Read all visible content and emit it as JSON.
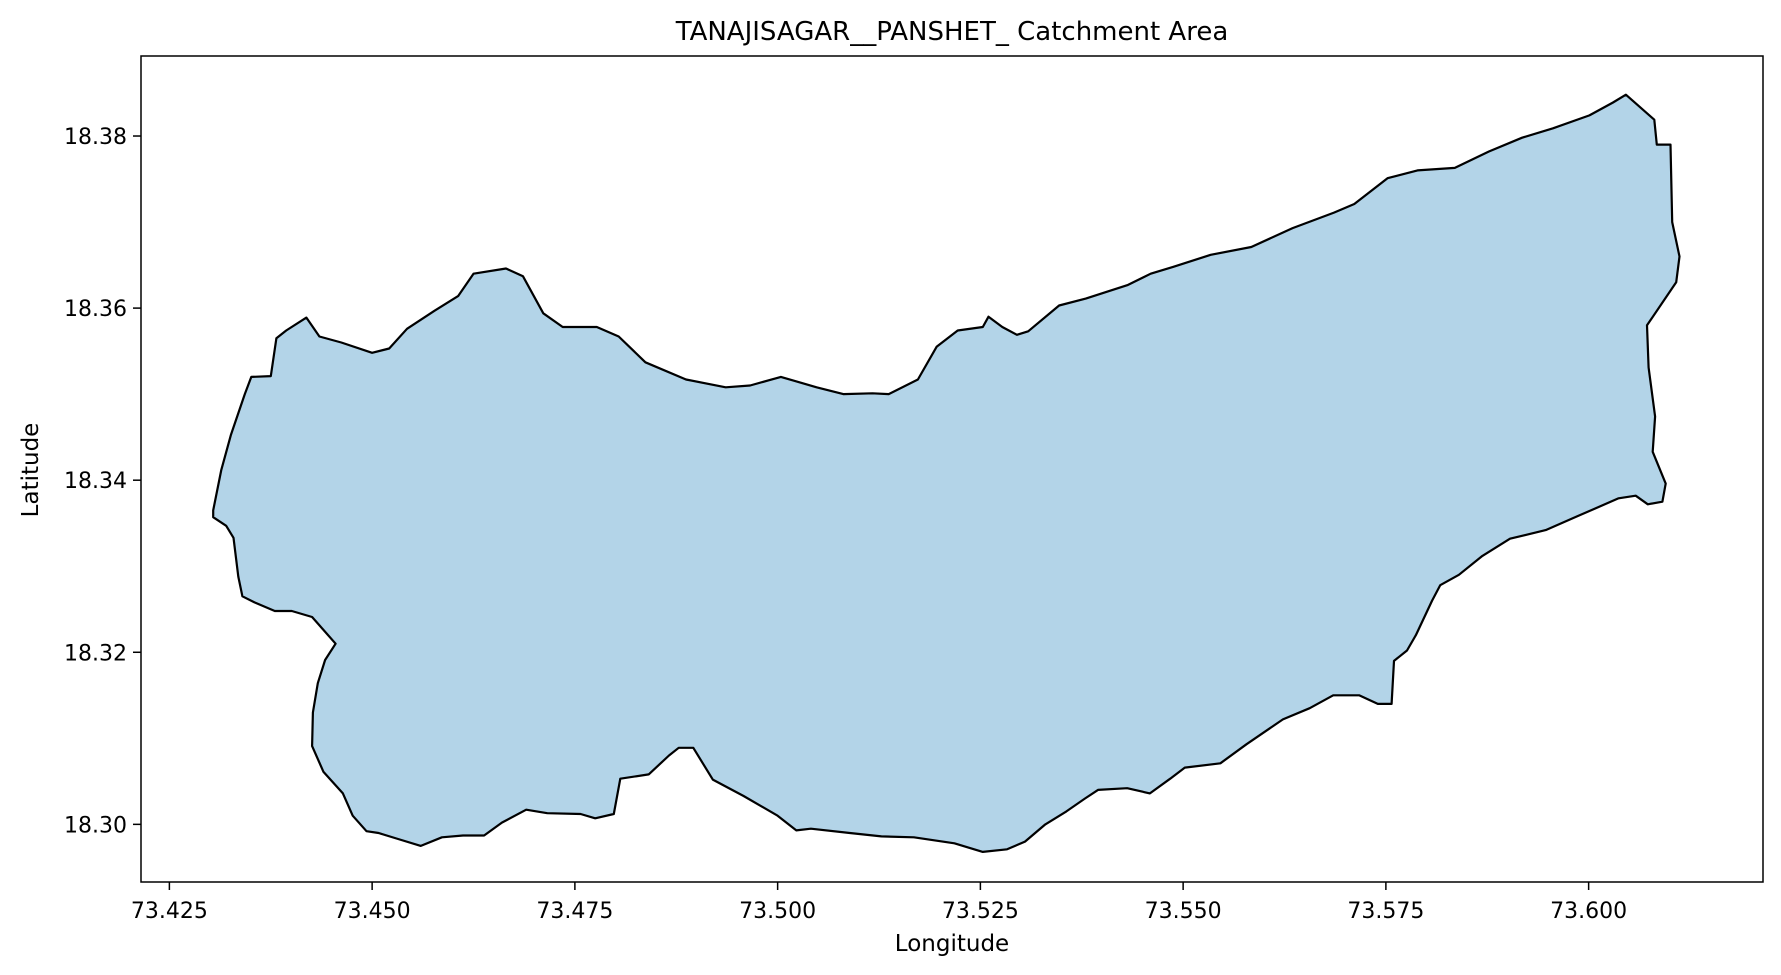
{
  "chart_data": {
    "type": "map",
    "title": "TANAJISAGAR__PANSHET_ Catchment Area",
    "xlabel": "Longitude",
    "ylabel": "Latitude",
    "xlim": [
      73.4215,
      73.6215
    ],
    "ylim": [
      18.2933,
      18.3893
    ],
    "xticks": [
      "73.425",
      "73.450",
      "73.475",
      "73.500",
      "73.525",
      "73.550",
      "73.575",
      "73.600"
    ],
    "yticks": [
      "18.30",
      "18.32",
      "18.34",
      "18.36",
      "18.38"
    ],
    "grid": false,
    "fill_color": "#b3d4e8",
    "edge_color": "#000000",
    "polygon": [
      [
        73.4304,
        18.3365
      ],
      [
        73.4314,
        18.3412
      ],
      [
        73.4326,
        18.3453
      ],
      [
        73.4343,
        18.35
      ],
      [
        73.4351,
        18.352
      ],
      [
        73.4375,
        18.3521
      ],
      [
        73.4382,
        18.3565
      ],
      [
        73.4394,
        18.3574
      ],
      [
        73.4419,
        18.3589
      ],
      [
        73.4435,
        18.3567
      ],
      [
        73.4462,
        18.356
      ],
      [
        73.45,
        18.3548
      ],
      [
        73.4521,
        18.3553
      ],
      [
        73.4543,
        18.3576
      ],
      [
        73.4577,
        18.3597
      ],
      [
        73.4606,
        18.3614
      ],
      [
        73.4625,
        18.364
      ],
      [
        73.4665,
        18.3646
      ],
      [
        73.4686,
        18.3637
      ],
      [
        73.4711,
        18.3594
      ],
      [
        73.4735,
        18.3578
      ],
      [
        73.4777,
        18.3578
      ],
      [
        73.4804,
        18.3567
      ],
      [
        73.4837,
        18.3537
      ],
      [
        73.4887,
        18.3517
      ],
      [
        73.4936,
        18.3508
      ],
      [
        73.4966,
        18.351
      ],
      [
        73.5004,
        18.352
      ],
      [
        73.5048,
        18.3508
      ],
      [
        73.5081,
        18.35
      ],
      [
        73.5117,
        18.3501
      ],
      [
        73.5137,
        18.35
      ],
      [
        73.5173,
        18.3517
      ],
      [
        73.5196,
        18.3555
      ],
      [
        73.5222,
        18.3574
      ],
      [
        73.5253,
        18.3578
      ],
      [
        73.526,
        18.359
      ],
      [
        73.5277,
        18.3578
      ],
      [
        73.5295,
        18.3569
      ],
      [
        73.5309,
        18.3573
      ],
      [
        73.5347,
        18.3603
      ],
      [
        73.538,
        18.3611
      ],
      [
        73.5432,
        18.3627
      ],
      [
        73.546,
        18.364
      ],
      [
        73.5488,
        18.3648
      ],
      [
        73.5534,
        18.3662
      ],
      [
        73.5584,
        18.3671
      ],
      [
        73.5635,
        18.3693
      ],
      [
        73.5686,
        18.3711
      ],
      [
        73.5711,
        18.3721
      ],
      [
        73.5752,
        18.3751
      ],
      [
        73.5789,
        18.376
      ],
      [
        73.5835,
        18.3763
      ],
      [
        73.5877,
        18.3782
      ],
      [
        73.5918,
        18.3798
      ],
      [
        73.5956,
        18.3809
      ],
      [
        73.6001,
        18.3824
      ],
      [
        73.603,
        18.3839
      ],
      [
        73.6046,
        18.3848
      ],
      [
        73.6081,
        18.3819
      ],
      [
        73.6084,
        18.379
      ],
      [
        73.6101,
        18.379
      ],
      [
        73.6103,
        18.37
      ],
      [
        73.6112,
        18.366
      ],
      [
        73.6108,
        18.363
      ],
      [
        73.6072,
        18.358
      ],
      [
        73.6074,
        18.3531
      ],
      [
        73.6082,
        18.3474
      ],
      [
        73.6079,
        18.3433
      ],
      [
        73.6095,
        18.3396
      ],
      [
        73.6091,
        18.3375
      ],
      [
        73.6073,
        18.3372
      ],
      [
        73.6058,
        18.3382
      ],
      [
        73.6037,
        18.3379
      ],
      [
        73.5986,
        18.3358
      ],
      [
        73.5947,
        18.3342
      ],
      [
        73.5903,
        18.3332
      ],
      [
        73.5869,
        18.3312
      ],
      [
        73.584,
        18.329
      ],
      [
        73.5817,
        18.3278
      ],
      [
        73.5807,
        18.326
      ],
      [
        73.5787,
        18.322
      ],
      [
        73.5776,
        18.3202
      ],
      [
        73.576,
        18.319
      ],
      [
        73.5757,
        18.314
      ],
      [
        73.574,
        18.314
      ],
      [
        73.5717,
        18.315
      ],
      [
        73.5685,
        18.315
      ],
      [
        73.5656,
        18.3135
      ],
      [
        73.5623,
        18.3122
      ],
      [
        73.5578,
        18.3093
      ],
      [
        73.5546,
        18.3071
      ],
      [
        73.5502,
        18.3066
      ],
      [
        73.5484,
        18.3053
      ],
      [
        73.5459,
        18.3036
      ],
      [
        73.5431,
        18.3042
      ],
      [
        73.5395,
        18.304
      ],
      [
        73.5379,
        18.303
      ],
      [
        73.5356,
        18.3015
      ],
      [
        73.533,
        18.3
      ],
      [
        73.5305,
        18.298
      ],
      [
        73.5283,
        18.2971
      ],
      [
        73.5253,
        18.2968
      ],
      [
        73.5218,
        18.2978
      ],
      [
        73.5168,
        18.2985
      ],
      [
        73.5128,
        18.2986
      ],
      [
        73.5089,
        18.299
      ],
      [
        73.5041,
        18.2995
      ],
      [
        73.5023,
        18.2993
      ],
      [
        73.5,
        18.301
      ],
      [
        73.4958,
        18.3033
      ],
      [
        73.492,
        18.3052
      ],
      [
        73.4896,
        18.3089
      ],
      [
        73.4878,
        18.3089
      ],
      [
        73.4866,
        18.308
      ],
      [
        73.4841,
        18.3058
      ],
      [
        73.4806,
        18.3053
      ],
      [
        73.4798,
        18.3012
      ],
      [
        73.4775,
        18.3007
      ],
      [
        73.4757,
        18.3012
      ],
      [
        73.4716,
        18.3013
      ],
      [
        73.469,
        18.3017
      ],
      [
        73.466,
        18.3002
      ],
      [
        73.4638,
        18.2987
      ],
      [
        73.4612,
        18.2987
      ],
      [
        73.4586,
        18.2985
      ],
      [
        73.456,
        18.2975
      ],
      [
        73.4532,
        18.2983
      ],
      [
        73.4508,
        18.299
      ],
      [
        73.4493,
        18.2992
      ],
      [
        73.4476,
        18.301
      ],
      [
        73.4464,
        18.3036
      ],
      [
        73.444,
        18.3061
      ],
      [
        73.4426,
        18.3091
      ],
      [
        73.4427,
        18.313
      ],
      [
        73.4433,
        18.3164
      ],
      [
        73.4442,
        18.3191
      ],
      [
        73.4455,
        18.321
      ],
      [
        73.4426,
        18.3241
      ],
      [
        73.4401,
        18.3248
      ],
      [
        73.438,
        18.3248
      ],
      [
        73.4355,
        18.3258
      ],
      [
        73.434,
        18.3265
      ],
      [
        73.4335,
        18.3288
      ],
      [
        73.4329,
        18.3333
      ],
      [
        73.432,
        18.3347
      ],
      [
        73.4304,
        18.3357
      ],
      [
        73.4304,
        18.3365
      ]
    ]
  }
}
